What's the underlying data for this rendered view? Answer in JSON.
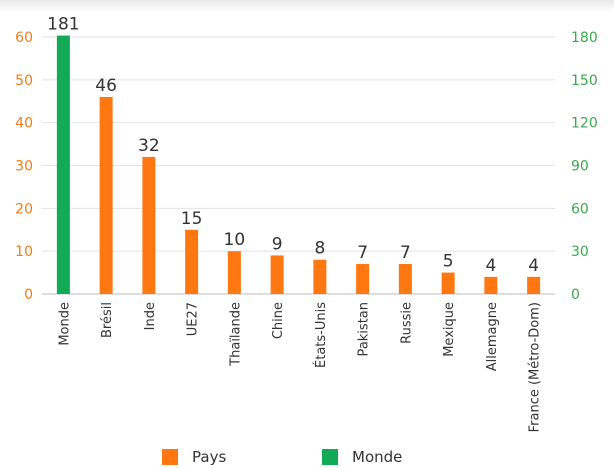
{
  "chart_data": {
    "type": "bar",
    "title": "",
    "categories": [
      "Monde",
      "Brésil",
      "Inde",
      "UE27",
      "Thaïlande",
      "Chine",
      "États-Unis",
      "Pakistan",
      "Russie",
      "Mexique",
      "Allemagne",
      "France (Métro-Dom)"
    ],
    "series": [
      {
        "name": "Monde",
        "axis": "right",
        "values": [
          181,
          null,
          null,
          null,
          null,
          null,
          null,
          null,
          null,
          null,
          null,
          null
        ]
      },
      {
        "name": "Pays",
        "axis": "left",
        "values": [
          null,
          46,
          32,
          15,
          10,
          9,
          8,
          7,
          7,
          5,
          4,
          4
        ]
      }
    ],
    "data_labels": [
      "181",
      "46",
      "32",
      "15",
      "10",
      "9",
      "8",
      "7",
      "7",
      "5",
      "4",
      "4"
    ],
    "y_left": {
      "ylim": [
        0,
        60
      ],
      "ticks": [
        0,
        10,
        20,
        30,
        40,
        50,
        60
      ],
      "color": "#f07d1a"
    },
    "y_right": {
      "ylim": [
        0,
        180
      ],
      "ticks": [
        0,
        30,
        60,
        90,
        120,
        150,
        180
      ],
      "color": "#3aa84e"
    },
    "colors": {
      "Pays": "#ff7711",
      "Monde": "#13aa55"
    },
    "grid": true,
    "legend_position": "bottom"
  },
  "legend": {
    "pays": "Pays",
    "monde": "Monde"
  }
}
